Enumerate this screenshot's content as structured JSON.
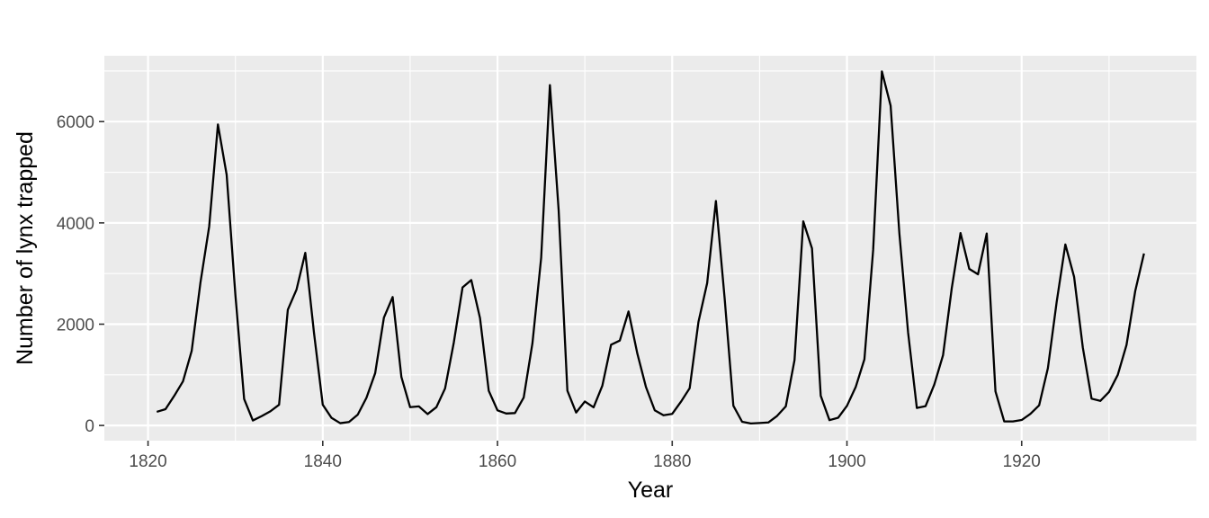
{
  "chart_data": {
    "type": "line",
    "title": "",
    "xlabel": "Year",
    "ylabel": "Number of lynx trapped",
    "xlim": [
      1815,
      1940
    ],
    "ylim": [
      -300,
      7300
    ],
    "x_ticks": [
      1820,
      1840,
      1860,
      1880,
      1900,
      1920
    ],
    "y_ticks": [
      0,
      2000,
      4000,
      6000
    ],
    "x_tick_labels": [
      "1820",
      "1840",
      "1860",
      "1880",
      "1900",
      "1920"
    ],
    "y_tick_labels": [
      "0",
      "2000",
      "4000",
      "6000"
    ],
    "grid": true,
    "legend": "none",
    "colors": {
      "panel": "#ebebeb",
      "grid_major": "#ffffff",
      "line": "#000000",
      "tick_label": "#4d4d4d"
    },
    "series": [
      {
        "x": [
          1821,
          1822,
          1823,
          1824,
          1825,
          1826,
          1827,
          1828,
          1829,
          1830,
          1831,
          1832,
          1833,
          1834,
          1835,
          1836,
          1837,
          1838,
          1839,
          1840,
          1841,
          1842,
          1843,
          1844,
          1845,
          1846,
          1847,
          1848,
          1849,
          1850,
          1851,
          1852,
          1853,
          1854,
          1855,
          1856,
          1857,
          1858,
          1859,
          1860,
          1861,
          1862,
          1863,
          1864,
          1865,
          1866,
          1867,
          1868,
          1869,
          1870,
          1871,
          1872,
          1873,
          1874,
          1875,
          1876,
          1877,
          1878,
          1879,
          1880,
          1881,
          1882,
          1883,
          1884,
          1885,
          1886,
          1887,
          1888,
          1889,
          1890,
          1891,
          1892,
          1893,
          1894,
          1895,
          1896,
          1897,
          1898,
          1899,
          1900,
          1901,
          1902,
          1903,
          1904,
          1905,
          1906,
          1907,
          1908,
          1909,
          1910,
          1911,
          1912,
          1913,
          1914,
          1915,
          1916,
          1917,
          1918,
          1919,
          1920,
          1921,
          1922,
          1923,
          1924,
          1925,
          1926,
          1927,
          1928,
          1929,
          1930,
          1931,
          1932,
          1933,
          1934
        ],
        "values": [
          269,
          321,
          585,
          871,
          1475,
          2821,
          3928,
          5943,
          4950,
          2577,
          523,
          98,
          184,
          279,
          409,
          2285,
          2685,
          3409,
          1824,
          409,
          151,
          45,
          68,
          213,
          546,
          1033,
          2129,
          2536,
          957,
          361,
          377,
          225,
          360,
          731,
          1638,
          2725,
          2871,
          2119,
          684,
          299,
          236,
          245,
          552,
          1623,
          3311,
          6721,
          4254,
          687,
          255,
          473,
          358,
          784,
          1594,
          1676,
          2251,
          1426,
          756,
          299,
          201,
          229,
          469,
          736,
          2042,
          2811,
          4431,
          2511,
          389,
          73,
          39,
          49,
          59,
          188,
          377,
          1292,
          4031,
          3495,
          587,
          105,
          153,
          387,
          758,
          1307,
          3465,
          6991,
          6313,
          3794,
          1836,
          345,
          382,
          808,
          1388,
          2713,
          3800,
          3091,
          2985,
          3790,
          674,
          81,
          80,
          108,
          229,
          399,
          1132,
          2432,
          3574,
          2935,
          1537,
          529,
          485,
          662,
          1000,
          1590,
          2657,
          3396
        ]
      }
    ]
  }
}
